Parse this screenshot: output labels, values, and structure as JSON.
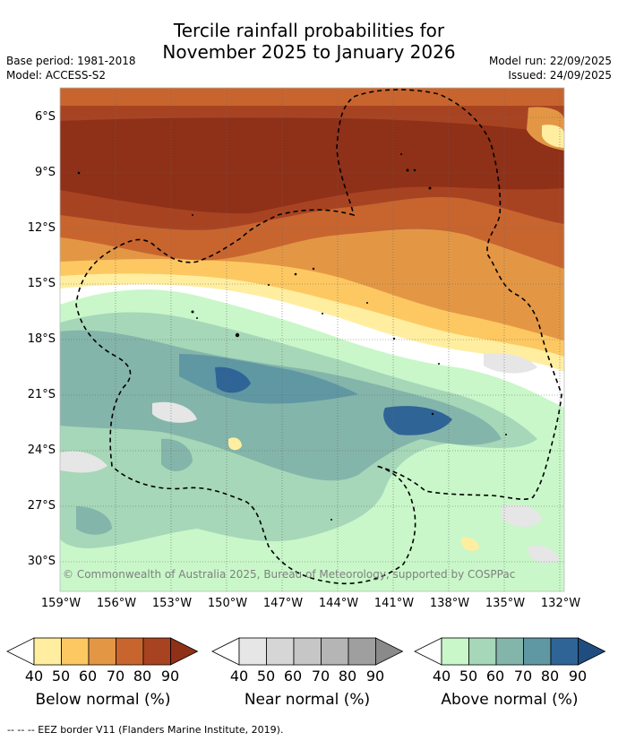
{
  "header": {
    "title_line1": "Tercile rainfall probabilities for",
    "title_line2": "November 2025 to January 2026",
    "base_period": "Base period: 1981-2018",
    "model": "Model: ACCESS-S2",
    "model_run": "Model run: 22/09/2025",
    "issued": "Issued: 24/09/2025"
  },
  "map": {
    "lat_labels": [
      "6°S",
      "9°S",
      "12°S",
      "15°S",
      "18°S",
      "21°S",
      "24°S",
      "27°S",
      "30°S"
    ],
    "lon_labels": [
      "159°W",
      "156°W",
      "153°W",
      "150°W",
      "147°W",
      "144°W",
      "141°W",
      "138°W",
      "135°W",
      "132°W"
    ],
    "copyright": "© Commonwealth of Australia 2025, Bureau of Meteorology, supported by COSPPac"
  },
  "legend": {
    "ticks": [
      "40",
      "50",
      "60",
      "70",
      "80",
      "90"
    ],
    "below": {
      "title": "Below normal (%)",
      "colors": [
        "#ffeea0",
        "#fdc862",
        "#e39745",
        "#c8652f",
        "#a84322",
        "#8f3018"
      ]
    },
    "near": {
      "title": "Near normal (%)",
      "colors": [
        "#e6e6e6",
        "#d6d6d6",
        "#c6c6c6",
        "#b5b5b5",
        "#9f9f9f",
        "#8a8a8a"
      ]
    },
    "above": {
      "title": "Above normal (%)",
      "colors": [
        "#c9f7c9",
        "#a6d7b8",
        "#84b5aa",
        "#5f98a3",
        "#2f6497",
        "#1f4d80"
      ]
    }
  },
  "footer": "--  --  -- EEZ border V11 (Flanders Marine Institute, 2019)."
}
